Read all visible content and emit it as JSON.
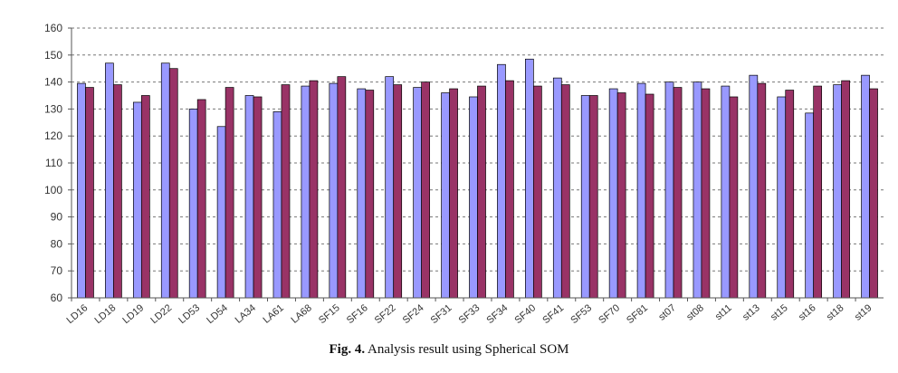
{
  "caption": {
    "label": "Fig. 4.",
    "text": "Analysis result using Spherical SOM"
  },
  "chart_data": {
    "type": "bar",
    "title": "",
    "xlabel": "",
    "ylabel": "",
    "ylim": [
      60,
      160
    ],
    "yticks": [
      60,
      70,
      80,
      90,
      100,
      110,
      120,
      130,
      140,
      150,
      160
    ],
    "grid": "horizontal dashed",
    "legend": "none",
    "categories": [
      "LD16",
      "LD18",
      "LD19",
      "LD22",
      "LD53",
      "LD54",
      "LA34",
      "LA61",
      "LA68",
      "SF15",
      "SF16",
      "SF22",
      "SF24",
      "SF31",
      "SF33",
      "SF34",
      "SF40",
      "SF41",
      "SF53",
      "SF70",
      "SF81",
      "st07",
      "st08",
      "st11",
      "st13",
      "st15",
      "st16",
      "st18",
      "st19"
    ],
    "series": [
      {
        "color": "#9999ff",
        "values": [
          139.5,
          147,
          132.5,
          147,
          130,
          123.5,
          135,
          129,
          138.5,
          139.5,
          137.5,
          142,
          138,
          136,
          134.5,
          146.5,
          148.5,
          141.5,
          135,
          137.5,
          139.5,
          140,
          140,
          138.5,
          142.5,
          134.5,
          128.5,
          139,
          142.5
        ]
      },
      {
        "color": "#993366",
        "values": [
          138,
          139,
          135,
          145,
          133.5,
          138,
          134.5,
          139,
          140.5,
          142,
          137,
          139,
          140,
          137.5,
          138.5,
          140.5,
          138.5,
          139,
          135,
          136,
          135.5,
          138,
          137.5,
          134.5,
          139.5,
          137,
          138.5,
          140.5,
          137.5
        ]
      }
    ]
  }
}
